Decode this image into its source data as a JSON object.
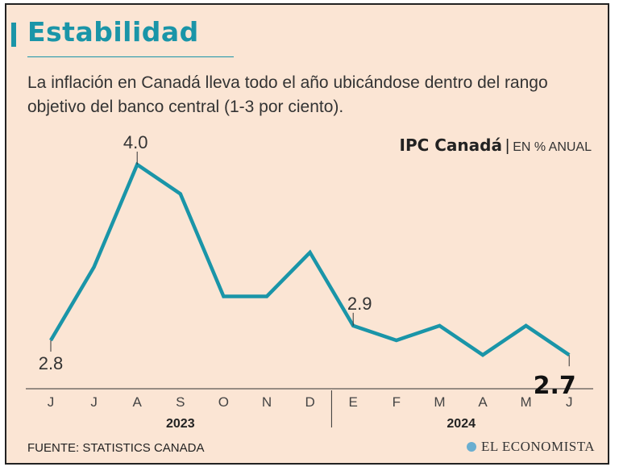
{
  "header": {
    "title": "Estabilidad",
    "subtitle": "La inflación en Canadá lleva todo el año ubicándose dentro del rango objetivo del banco central (1-3 por ciento)."
  },
  "chart_data": {
    "type": "line",
    "title": "IPC Canadá",
    "unit_label": "EN % ANUAL",
    "categories": [
      "J",
      "J",
      "A",
      "S",
      "O",
      "N",
      "D",
      "E",
      "F",
      "M",
      "A",
      "M",
      "J"
    ],
    "years": [
      {
        "label": "2023",
        "start_index": 0,
        "end_index": 6
      },
      {
        "label": "2024",
        "start_index": 7,
        "end_index": 12
      }
    ],
    "series": [
      {
        "name": "IPC Canadá",
        "color": "#1a95a8",
        "values": [
          2.8,
          3.3,
          4.0,
          3.8,
          3.1,
          3.1,
          3.4,
          2.9,
          2.8,
          2.9,
          2.7,
          2.9,
          2.7
        ]
      }
    ],
    "annotations": [
      {
        "index": 0,
        "text": "2.8",
        "style": "normal",
        "position": "below"
      },
      {
        "index": 2,
        "text": "4.0",
        "style": "normal",
        "position": "above"
      },
      {
        "index": 7,
        "text": "2.9",
        "style": "normal",
        "position": "above"
      },
      {
        "index": 12,
        "text": "2.7",
        "style": "bold",
        "position": "below"
      }
    ],
    "ylim": [
      2.5,
      4.2
    ],
    "grid": false,
    "xlabel": "",
    "ylabel": ""
  },
  "footer": {
    "source": "FUENTE: STATISTICS CANADA",
    "brand": "EL ECONOMISTA"
  },
  "colors": {
    "accent": "#1a95a8",
    "background": "#fbe5d4"
  }
}
